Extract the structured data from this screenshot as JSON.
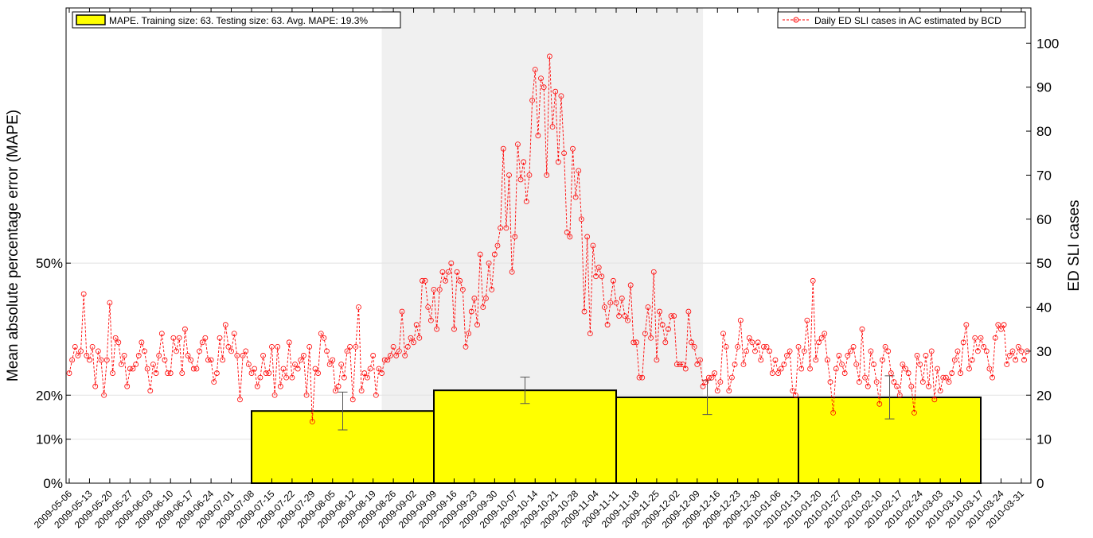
{
  "chart_data": {
    "type": "bar",
    "ylabel": "Mean absolute percentage error (MAPE)",
    "y2label": "ED SLI cases",
    "ylim": [
      0,
      108
    ],
    "yticks": [
      {
        "value": 0,
        "label": "0%"
      },
      {
        "value": 10,
        "label": "10%"
      },
      {
        "value": 20,
        "label": "20%"
      },
      {
        "value": 50,
        "label": "50%"
      }
    ],
    "y2lim": [
      0,
      108
    ],
    "y2ticks": [
      0,
      10,
      20,
      30,
      40,
      50,
      60,
      70,
      80,
      90,
      100
    ],
    "grid": true,
    "bars": {
      "name": "MAPE. Training size: 63. Testing size: 63. Avg. MAPE: 19.3%",
      "color": "#ffff00",
      "values": [
        16.4,
        21.1,
        19.5,
        19.5
      ],
      "errors": [
        4.3,
        3,
        3.9,
        4.9
      ]
    },
    "categories": [
      "2009-05-06",
      null,
      null,
      null,
      null,
      null,
      null,
      "2009-05-13",
      null,
      null,
      null,
      null,
      null,
      null,
      "2009-05-20",
      null,
      null,
      null,
      null,
      null,
      null,
      "2009-05-27",
      null,
      null,
      null,
      null,
      null,
      null,
      "2009-06-03",
      null,
      null,
      null,
      null,
      null,
      null,
      "2009-06-10",
      null,
      null,
      null,
      null,
      null,
      null,
      "2009-06-17",
      null,
      null,
      null,
      null,
      null,
      null,
      "2009-06-24",
      null,
      null,
      null,
      null,
      null,
      null,
      "2009-07-01",
      null,
      null,
      null,
      null,
      null,
      null,
      "2009-07-08",
      null,
      null,
      null,
      null,
      null,
      null,
      "2009-07-15",
      null,
      null,
      null,
      null,
      null,
      null,
      "2009-07-22",
      null,
      null,
      null,
      null,
      null,
      null,
      "2009-07-29",
      null,
      null,
      null,
      null,
      null,
      null,
      "2009-08-05",
      null,
      null,
      null,
      null,
      null,
      null,
      "2009-08-12",
      null,
      null,
      null,
      null,
      null,
      null,
      "2009-08-19",
      null,
      null,
      null,
      null,
      null,
      null,
      "2009-08-26",
      null,
      null,
      null,
      null,
      null,
      null,
      "2009-09-02",
      null,
      null,
      null,
      null,
      null,
      null,
      "2009-09-09",
      null,
      null,
      null,
      null,
      null,
      null,
      "2009-09-16",
      null,
      null,
      null,
      null,
      null,
      null,
      "2009-09-23",
      null,
      null,
      null,
      null,
      null,
      null,
      "2009-09-30",
      null,
      null,
      null,
      null,
      null,
      null,
      "2009-10-07",
      null,
      null,
      null,
      null,
      null,
      null,
      "2009-10-14",
      null,
      null,
      null,
      null,
      null,
      null,
      "2009-10-21",
      null,
      null,
      null,
      null,
      null,
      null,
      "2009-10-28",
      null,
      null,
      null,
      null,
      null,
      null,
      "2009-11-04",
      null,
      null,
      null,
      null,
      null,
      null,
      "2009-11-11",
      null,
      null,
      null,
      null,
      null,
      null,
      "2009-11-18",
      null,
      null,
      null,
      null,
      null,
      null,
      "2009-11-25",
      null,
      null,
      null,
      null,
      null,
      null,
      "2009-12-02",
      null,
      null,
      null,
      null,
      null,
      null,
      "2009-12-09",
      null,
      null,
      null,
      null,
      null,
      null,
      "2009-12-16",
      null,
      null,
      null,
      null,
      null,
      null,
      "2009-12-23",
      null,
      null,
      null,
      null,
      null,
      null,
      "2009-12-30",
      null,
      null,
      null,
      null,
      null,
      null,
      "2010-01-06",
      null,
      null,
      null,
      null,
      null,
      null,
      "2010-01-13",
      null,
      null,
      null,
      null,
      null,
      null,
      "2010-01-20",
      null,
      null,
      null,
      null,
      null,
      null,
      "2010-01-27",
      null,
      null,
      null,
      null,
      null,
      null,
      "2010-02-03",
      null,
      null,
      null,
      null,
      null,
      null,
      "2010-02-10",
      null,
      null,
      null,
      null,
      null,
      null,
      "2010-02-17",
      null,
      null,
      null,
      null,
      null,
      null,
      "2010-02-24",
      null,
      null,
      null,
      null,
      null,
      null,
      "2010-03-03",
      null,
      null,
      null,
      null,
      null,
      null,
      "2010-03-10",
      null,
      null,
      null,
      null,
      null,
      null,
      "2010-03-17",
      null,
      null,
      null,
      null,
      null,
      null,
      "2010-03-24",
      null,
      null,
      null,
      null,
      null,
      null,
      "2010-03-31",
      null,
      null
    ],
    "series": [
      {
        "name": "Daily ED SLI cases in AC estimated by BCD",
        "color": "#ff0000",
        "axis": "y2",
        "values": [
          25,
          28,
          31,
          29,
          30,
          43,
          29,
          28,
          31,
          22,
          30,
          28,
          20,
          28,
          41,
          25,
          33,
          32,
          27,
          29,
          22,
          26,
          26,
          27,
          29,
          32,
          30,
          26,
          21,
          27,
          25,
          29,
          34,
          28,
          25,
          25,
          33,
          30,
          33,
          25,
          35,
          29,
          28,
          26,
          26,
          30,
          32,
          33,
          28,
          28,
          23,
          25,
          33,
          28,
          36,
          31,
          30,
          34,
          29,
          19,
          29,
          30,
          27,
          25,
          26,
          22,
          24,
          29,
          25,
          25,
          31,
          20,
          31,
          22,
          26,
          24,
          32,
          24,
          27,
          26,
          28,
          29,
          20,
          31,
          14,
          26,
          25,
          34,
          33,
          30,
          27,
          28,
          21,
          22,
          27,
          24,
          30,
          31,
          19,
          31,
          40,
          21,
          25,
          24,
          26,
          29,
          20,
          26,
          25,
          28,
          28,
          29,
          31,
          29,
          30,
          39,
          29,
          31,
          33,
          32,
          36,
          33,
          46,
          46,
          40,
          37,
          44,
          35,
          44,
          48,
          46,
          48,
          50,
          35,
          48,
          46,
          44,
          31,
          34,
          39,
          42,
          36,
          52,
          40,
          42,
          50,
          44,
          52,
          54,
          58,
          76,
          58,
          70,
          48,
          56,
          77,
          69,
          73,
          64,
          70,
          87,
          94,
          79,
          92,
          90,
          70,
          97,
          81,
          89,
          73,
          88,
          75,
          57,
          56,
          76,
          65,
          71,
          60,
          39,
          56,
          34,
          54,
          47,
          49,
          47,
          40,
          36,
          41,
          46,
          41,
          38,
          42,
          38,
          37,
          45,
          32,
          32,
          24,
          24,
          34,
          40,
          33,
          48,
          28,
          39,
          36,
          32,
          35,
          38,
          38,
          27,
          27,
          27,
          26,
          39,
          32,
          31,
          27,
          28,
          22,
          23,
          24,
          24,
          25,
          21,
          23,
          34,
          31,
          21,
          24,
          27,
          31,
          37,
          27,
          30,
          33,
          32,
          30,
          32,
          28,
          31,
          31,
          30,
          25,
          28,
          25,
          26,
          27,
          29,
          30,
          21,
          20,
          31,
          26,
          30,
          37,
          26,
          46,
          28,
          32,
          33,
          34,
          28,
          23,
          16,
          26,
          29,
          27,
          25,
          29,
          30,
          31,
          27,
          23,
          35,
          24,
          22,
          30,
          27,
          23,
          18,
          28,
          31,
          30,
          25,
          23,
          22,
          20,
          27,
          26,
          25,
          22,
          16,
          29,
          27,
          23,
          29,
          22,
          30,
          19,
          26,
          21,
          24,
          24,
          23,
          25,
          28,
          30,
          25,
          32,
          36,
          26,
          28,
          33,
          30,
          33,
          31,
          30,
          26,
          24,
          33,
          36,
          35,
          36,
          27,
          29,
          30,
          28,
          31,
          30,
          28,
          30
        ]
      }
    ]
  }
}
